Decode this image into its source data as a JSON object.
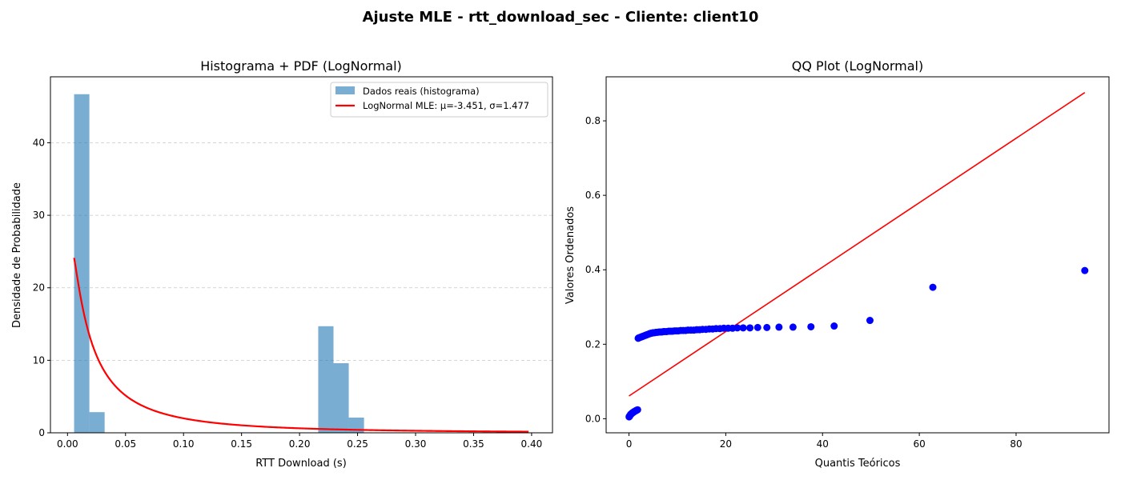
{
  "figure": {
    "suptitle": "Ajuste MLE - rtt_download_sec - Cliente: client10"
  },
  "colors": {
    "hist_fill": "#1f77b4",
    "hist_alpha": 0.6,
    "pdf_line": "#ff0000",
    "qq_points": "#0000ff",
    "qq_line": "#ff0000",
    "grid": "#b0b0b0"
  },
  "chart_data": [
    {
      "type": "bar",
      "panel": "left",
      "title": "Histograma + PDF (LogNormal)",
      "xlabel": "RTT Download (s)",
      "ylabel": "Densidade de Probabilidade",
      "xlim": [
        -0.0147,
        0.418
      ],
      "ylim": [
        0,
        49.1
      ],
      "xticks": [
        0.0,
        0.05,
        0.1,
        0.15,
        0.2,
        0.25,
        0.3,
        0.35,
        0.4
      ],
      "xtick_labels": [
        "0.00",
        "0.05",
        "0.10",
        "0.15",
        "0.20",
        "0.25",
        "0.30",
        "0.35",
        "0.40"
      ],
      "yticks": [
        0,
        10,
        20,
        30,
        40
      ],
      "ytick_labels": [
        "0",
        "10",
        "20",
        "30",
        "40"
      ],
      "grid": "y-dashed",
      "legend_position": "top-right",
      "histogram": {
        "name": "Dados reais (histograma)",
        "bin_start": 0.0057,
        "bin_width": 0.01315,
        "counts_density": [
          46.7,
          2.85,
          0,
          0,
          0,
          0,
          0,
          0,
          0,
          0,
          0,
          0,
          0,
          0,
          0,
          0,
          14.7,
          9.6,
          2.1,
          0,
          0,
          0,
          0,
          0,
          0,
          0,
          0,
          0,
          0,
          0
        ]
      },
      "pdf": {
        "name": "LogNormal MLE: μ=-3.451, σ=1.477",
        "distribution": "lognormal",
        "mu": -3.451,
        "sigma": 1.477,
        "x_range": [
          0.0057,
          0.3974
        ]
      }
    },
    {
      "type": "scatter",
      "panel": "right",
      "title": "QQ Plot (LogNormal)",
      "xlabel": "Quantis Teóricos",
      "ylabel": "Valores Ordenados",
      "xlim": [
        -4.72,
        99.2
      ],
      "ylim": [
        -0.0378,
        0.9183
      ],
      "xticks": [
        0,
        20,
        40,
        60,
        80
      ],
      "xtick_labels": [
        "0",
        "20",
        "40",
        "60",
        "80"
      ],
      "yticks": [
        0.0,
        0.2,
        0.4,
        0.6,
        0.8
      ],
      "ytick_labels": [
        "0.0",
        "0.2",
        "0.4",
        "0.6",
        "0.8"
      ],
      "grid": false,
      "points": {
        "x": [
          0.03,
          0.08,
          0.12,
          0.17,
          0.22,
          0.27,
          0.33,
          0.4,
          0.48,
          0.56,
          0.65,
          0.75,
          0.85,
          0.96,
          1.08,
          1.2,
          1.33,
          1.47,
          1.62,
          1.78,
          1.9,
          2.0,
          2.2,
          2.4,
          2.6,
          2.8,
          3.0,
          3.2,
          3.4,
          3.6,
          3.8,
          4.0,
          4.2,
          4.4,
          4.6,
          4.8,
          5.0,
          5.3,
          5.6,
          5.9,
          6.2,
          6.5,
          6.8,
          7.1,
          7.4,
          7.8,
          8.2,
          8.6,
          9.0,
          9.4,
          9.8,
          10.2,
          10.7,
          11.2,
          11.7,
          12.2,
          12.8,
          13.4,
          14.0,
          14.6,
          15.2,
          15.9,
          16.6,
          17.3,
          18.0,
          18.8,
          19.6,
          20.5,
          21.4,
          22.4,
          23.6,
          25.0,
          26.6,
          28.5,
          31.0,
          33.9,
          37.6,
          42.4,
          49.8,
          62.8,
          94.2
        ],
        "y": [
          0.005,
          0.006,
          0.007,
          0.008,
          0.009,
          0.01,
          0.011,
          0.012,
          0.013,
          0.014,
          0.015,
          0.016,
          0.017,
          0.018,
          0.019,
          0.02,
          0.021,
          0.022,
          0.023,
          0.024,
          0.216,
          0.217,
          0.218,
          0.219,
          0.22,
          0.221,
          0.222,
          0.223,
          0.224,
          0.225,
          0.226,
          0.227,
          0.228,
          0.229,
          0.23,
          0.23,
          0.231,
          0.231,
          0.232,
          0.232,
          0.233,
          0.233,
          0.233,
          0.234,
          0.234,
          0.234,
          0.235,
          0.235,
          0.235,
          0.236,
          0.236,
          0.236,
          0.237,
          0.237,
          0.237,
          0.238,
          0.238,
          0.238,
          0.239,
          0.239,
          0.24,
          0.24,
          0.241,
          0.241,
          0.242,
          0.242,
          0.243,
          0.243,
          0.243,
          0.244,
          0.244,
          0.244,
          0.245,
          0.245,
          0.246,
          0.246,
          0.247,
          0.249,
          0.264,
          0.353,
          0.398
        ]
      },
      "reference_line": {
        "x": [
          0.0,
          94.2
        ],
        "y": [
          0.061,
          0.876
        ]
      }
    }
  ]
}
